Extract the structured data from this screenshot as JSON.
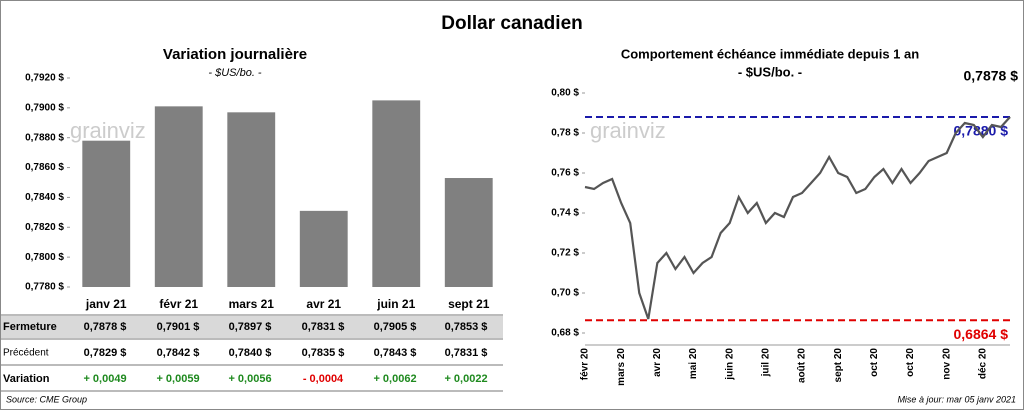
{
  "title": "Dollar canadien",
  "watermark": "grainviz",
  "chart_data": [
    {
      "type": "bar",
      "title": "Variation  journalière",
      "subtitle": "- $US/bo. -",
      "categories": [
        "janv 21",
        "févr 21",
        "mars 21",
        "avr 21",
        "juin 21",
        "sept 21"
      ],
      "values": [
        0.7878,
        0.7901,
        0.7897,
        0.7831,
        0.7905,
        0.7853
      ],
      "color": "#808080",
      "ylim": [
        0.778,
        0.7922
      ],
      "yticks": [
        {
          "value": 0.778,
          "label": "0,7780 $"
        },
        {
          "value": 0.78,
          "label": "0,7800 $"
        },
        {
          "value": 0.782,
          "label": "0,7820 $"
        },
        {
          "value": 0.784,
          "label": "0,7840 $"
        },
        {
          "value": 0.786,
          "label": "0,7860 $"
        },
        {
          "value": 0.788,
          "label": "0,7880 $"
        },
        {
          "value": 0.79,
          "label": "0,7900 $"
        },
        {
          "value": 0.792,
          "label": "0,7920 $"
        }
      ]
    },
    {
      "type": "line",
      "title": "Comportement échéance immédiate depuis 1 an",
      "subtitle": "- $US/bo. -",
      "categories": [
        "févr 20",
        null,
        null,
        null,
        "mars 20",
        null,
        null,
        null,
        "avr 20",
        null,
        null,
        null,
        "mai 20",
        null,
        null,
        null,
        "juin 20",
        null,
        null,
        null,
        "juil 20",
        null,
        null,
        null,
        "août 20",
        null,
        null,
        null,
        "sept 20",
        null,
        null,
        null,
        "oct 20",
        null,
        null,
        null,
        "oct 20",
        null,
        null,
        null,
        "nov 20",
        null,
        null,
        null,
        "déc 20",
        null,
        null,
        null
      ],
      "values": [
        0.753,
        0.752,
        0.755,
        0.757,
        0.745,
        0.735,
        0.7,
        0.687,
        0.715,
        0.72,
        0.712,
        0.718,
        0.71,
        0.715,
        0.718,
        0.73,
        0.735,
        0.748,
        0.74,
        0.745,
        0.735,
        0.74,
        0.738,
        0.748,
        0.75,
        0.755,
        0.76,
        0.768,
        0.76,
        0.758,
        0.75,
        0.752,
        0.758,
        0.762,
        0.755,
        0.762,
        0.755,
        0.76,
        0.766,
        0.768,
        0.77,
        0.78,
        0.785,
        0.784,
        0.778,
        0.784,
        0.783,
        0.788
      ],
      "color": "#555555",
      "ylim": [
        0.674,
        0.804
      ],
      "yticks": [
        {
          "value": 0.68,
          "label": "0,68 $"
        },
        {
          "value": 0.7,
          "label": "0,70 $"
        },
        {
          "value": 0.72,
          "label": "0,72 $"
        },
        {
          "value": 0.74,
          "label": "0,74 $"
        },
        {
          "value": 0.76,
          "label": "0,76 $"
        },
        {
          "value": 0.78,
          "label": "0,78 $"
        },
        {
          "value": 0.8,
          "label": "0,80 $"
        }
      ],
      "reference_lines": [
        {
          "value": 0.788,
          "label": "0,7880 $",
          "color": "#1a1aaa"
        },
        {
          "value": 0.6864,
          "label": "0,6864 $",
          "color": "#e00000"
        }
      ],
      "last_label": {
        "value": 0.7878,
        "label": "0,7878 $"
      }
    }
  ],
  "table": {
    "rows": [
      [
        "Fermeture",
        "0,7878 $",
        "0,7901 $",
        "0,7897 $",
        "0,7831 $",
        "0,7905 $",
        "0,7853 $"
      ],
      [
        "Précédent",
        "0,7829 $",
        "0,7842 $",
        "0,7840 $",
        "0,7835 $",
        "0,7843 $",
        "0,7831 $"
      ],
      [
        "Variation",
        "+ 0,0049",
        "+ 0,0059",
        "+ 0,0056",
        "- 0,0004",
        "+ 0,0062",
        "+ 0,0022"
      ]
    ]
  },
  "source": "Source: CME Group",
  "updated": "Mise à jour: mar 05 janv 2021"
}
